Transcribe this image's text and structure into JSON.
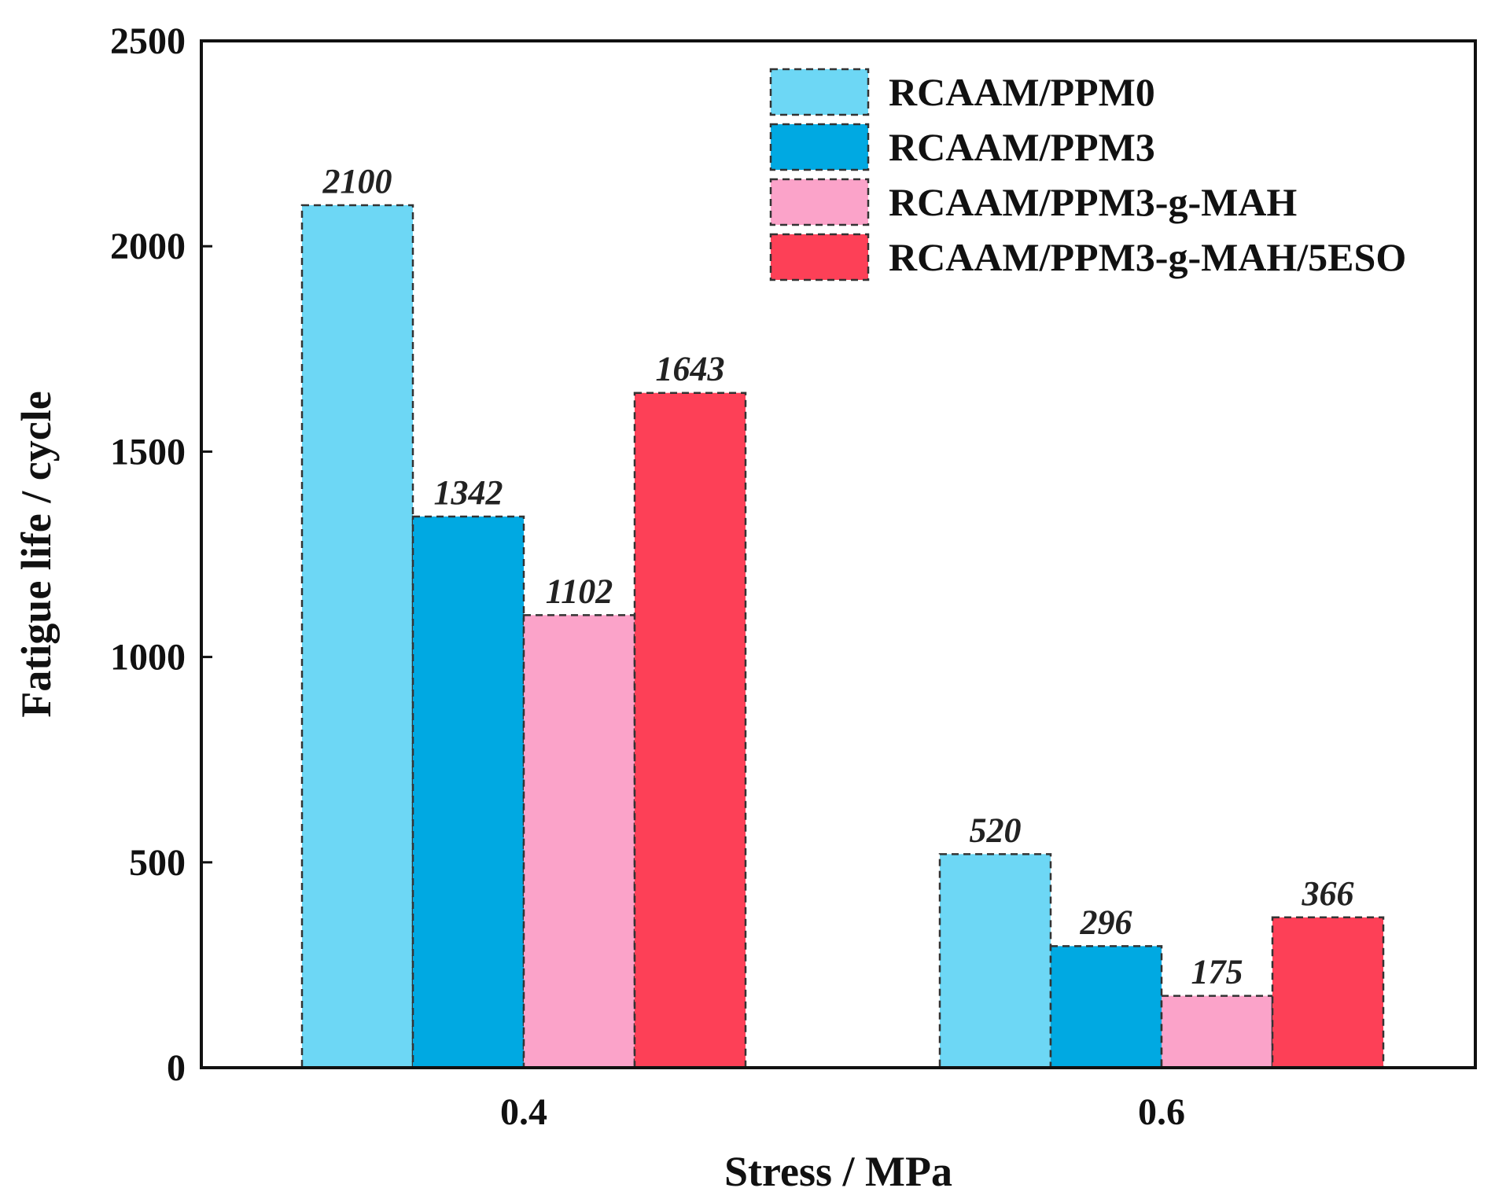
{
  "chart_data": {
    "type": "bar",
    "title": "",
    "xlabel": "Stress / MPa",
    "ylabel": "Fatigue life / cycle",
    "ylim": [
      0,
      2500
    ],
    "yticks": [
      0,
      500,
      1000,
      1500,
      2000,
      2500
    ],
    "categories": [
      "0.4",
      "0.6"
    ],
    "series": [
      {
        "name": "RCAAM/PPM0",
        "color": "#6DD7F5",
        "values": [
          2100,
          520
        ]
      },
      {
        "name": "RCAAM/PPM3",
        "color": "#00A9E2",
        "values": [
          1342,
          296
        ]
      },
      {
        "name": "RCAAM/PPM3-g-MAH",
        "color": "#FBA3C9",
        "values": [
          1102,
          175
        ]
      },
      {
        "name": "RCAAM/PPM3-g-MAH/5ESO",
        "color": "#FD4057",
        "values": [
          1643,
          366
        ]
      }
    ],
    "data_labels": [
      [
        "2100",
        "520"
      ],
      [
        "1342",
        "296"
      ],
      [
        "1102",
        "175"
      ],
      [
        "1643",
        "366"
      ]
    ],
    "legend_position": "top-right",
    "grid": false
  }
}
